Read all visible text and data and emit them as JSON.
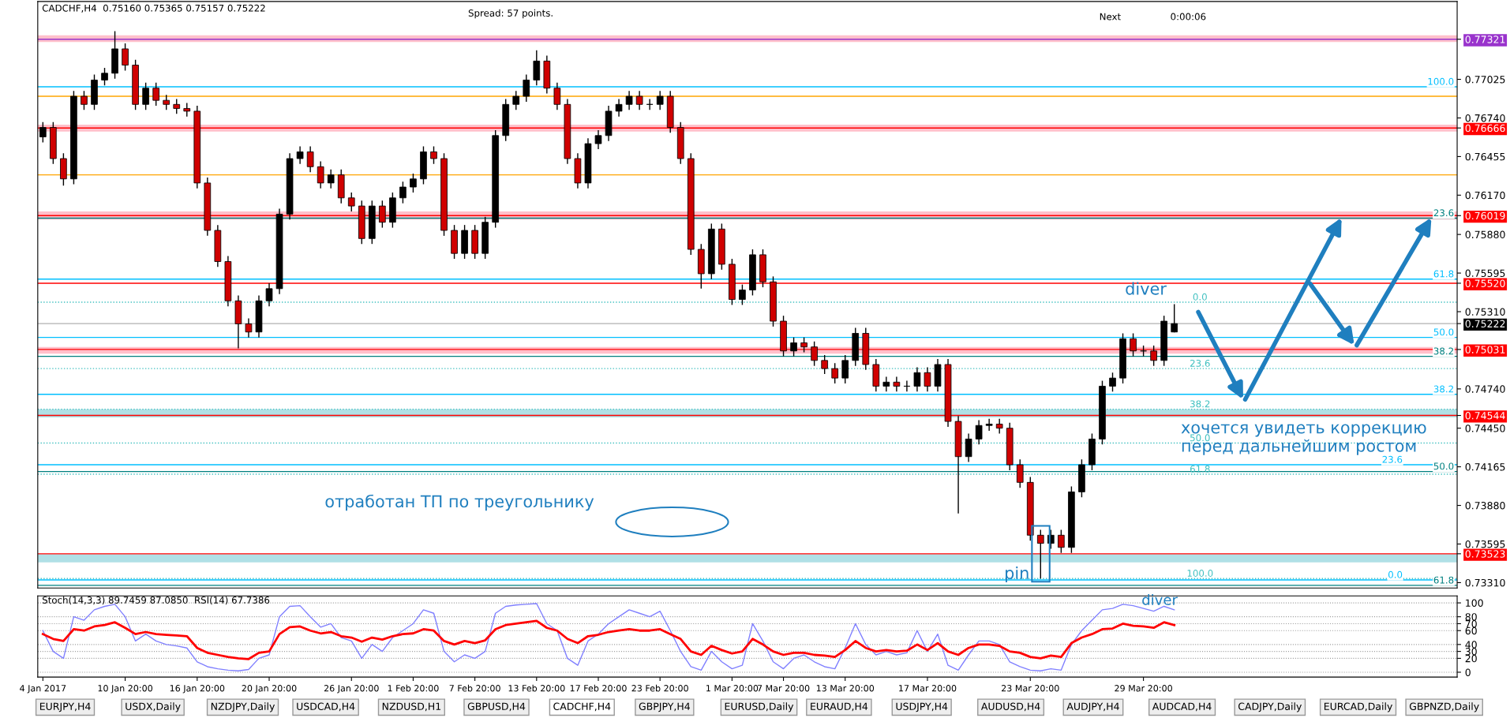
{
  "chart_data": [
    {
      "type": "candlestick",
      "title": "CADCHF,H4  0.75160 0.75365 0.75157 0.75222",
      "tick_labels": "y",
      "categories": [
        null,
        null,
        null,
        null,
        null,
        null,
        null,
        null,
        null,
        null,
        null,
        null,
        null,
        null,
        null,
        null,
        null,
        null,
        null,
        null,
        null,
        null,
        null,
        null,
        null,
        null,
        null,
        null,
        null,
        null,
        null,
        null,
        null,
        null,
        null,
        null,
        null,
        null,
        null,
        null,
        null,
        null,
        null,
        null,
        null,
        null,
        null,
        null,
        null,
        null,
        null,
        null,
        null,
        null,
        null,
        null,
        null,
        null,
        null,
        null,
        null,
        null,
        null,
        null,
        null,
        null,
        null,
        null,
        null,
        null,
        null,
        null,
        null,
        null,
        null,
        null,
        null,
        null,
        null,
        null,
        null,
        null,
        null,
        null,
        null,
        null,
        null,
        null,
        null,
        null,
        null,
        null,
        null,
        null,
        null,
        null,
        null,
        null,
        null,
        null,
        null,
        null,
        null,
        null,
        null,
        null,
        null,
        null,
        null,
        null,
        null,
        null,
        null,
        null,
        null,
        null,
        null,
        null,
        null,
        null,
        null,
        null,
        null,
        null,
        null,
        null,
        null,
        null,
        null,
        null,
        null,
        null,
        null,
        null,
        null,
        null,
        null,
        null
      ],
      "ohlc": [
        [
          0.766,
          0.7671,
          0.7656,
          0.7667
        ],
        [
          0.7667,
          0.7671,
          0.764,
          0.7644
        ],
        [
          0.7644,
          0.7648,
          0.7624,
          0.7629
        ],
        [
          0.7629,
          0.7694,
          0.7625,
          0.769
        ],
        [
          0.769,
          0.7694,
          0.768,
          0.7684
        ],
        [
          0.7684,
          0.7706,
          0.768,
          0.7702
        ],
        [
          0.7702,
          0.7711,
          0.7698,
          0.7707
        ],
        [
          0.7707,
          0.7738,
          0.7703,
          0.7725
        ],
        [
          0.7725,
          0.7729,
          0.7709,
          0.7713
        ],
        [
          0.7713,
          0.7717,
          0.768,
          0.7684
        ],
        [
          0.7684,
          0.77,
          0.768,
          0.7696
        ],
        [
          0.7696,
          0.77,
          0.7683,
          0.7687
        ],
        [
          0.7687,
          0.7691,
          0.768,
          0.7684
        ],
        [
          0.7684,
          0.7688,
          0.7677,
          0.7681
        ],
        [
          0.7681,
          0.7685,
          0.7675,
          0.7679
        ],
        [
          0.7679,
          0.7683,
          0.7622,
          0.7626
        ],
        [
          0.7626,
          0.763,
          0.7587,
          0.7591
        ],
        [
          0.7591,
          0.7595,
          0.7564,
          0.7568
        ],
        [
          0.7568,
          0.7572,
          0.7535,
          0.7539
        ],
        [
          0.7539,
          0.7543,
          0.7504,
          0.7522
        ],
        [
          0.7522,
          0.7526,
          0.7512,
          0.7516
        ],
        [
          0.7516,
          0.7543,
          0.7512,
          0.7539
        ],
        [
          0.7539,
          0.7552,
          0.7535,
          0.7548
        ],
        [
          0.7548,
          0.7607,
          0.7544,
          0.7603
        ],
        [
          0.7603,
          0.7648,
          0.7599,
          0.7644
        ],
        [
          0.7644,
          0.7653,
          0.764,
          0.7649
        ],
        [
          0.7649,
          0.7653,
          0.7634,
          0.7638
        ],
        [
          0.7638,
          0.7642,
          0.7622,
          0.7626
        ],
        [
          0.7626,
          0.7636,
          0.7622,
          0.7632
        ],
        [
          0.7632,
          0.7636,
          0.7611,
          0.7615
        ],
        [
          0.7615,
          0.7619,
          0.7605,
          0.7609
        ],
        [
          0.7609,
          0.7613,
          0.7581,
          0.7585
        ],
        [
          0.7585,
          0.7613,
          0.7581,
          0.7609
        ],
        [
          0.7609,
          0.7613,
          0.7593,
          0.7597
        ],
        [
          0.7597,
          0.7619,
          0.7593,
          0.7615
        ],
        [
          0.7615,
          0.7627,
          0.7611,
          0.7623
        ],
        [
          0.7623,
          0.7633,
          0.7619,
          0.7629
        ],
        [
          0.7629,
          0.7653,
          0.7625,
          0.7649
        ],
        [
          0.7649,
          0.7653,
          0.764,
          0.7644
        ],
        [
          0.7644,
          0.7648,
          0.7587,
          0.7591
        ],
        [
          0.7591,
          0.7595,
          0.757,
          0.7574
        ],
        [
          0.7574,
          0.7595,
          0.757,
          0.7591
        ],
        [
          0.7591,
          0.7595,
          0.757,
          0.7574
        ],
        [
          0.7574,
          0.7601,
          0.757,
          0.7597
        ],
        [
          0.7597,
          0.7665,
          0.7593,
          0.7661
        ],
        [
          0.7661,
          0.7688,
          0.7657,
          0.7684
        ],
        [
          0.7684,
          0.7694,
          0.768,
          0.769
        ],
        [
          0.769,
          0.7706,
          0.7686,
          0.7702
        ],
        [
          0.7702,
          0.7724,
          0.7698,
          0.7716
        ],
        [
          0.7716,
          0.772,
          0.7692,
          0.7696
        ],
        [
          0.7696,
          0.77,
          0.768,
          0.7684
        ],
        [
          0.7684,
          0.7688,
          0.764,
          0.7644
        ],
        [
          0.7644,
          0.7648,
          0.7622,
          0.7626
        ],
        [
          0.7626,
          0.7659,
          0.7622,
          0.7655
        ],
        [
          0.7655,
          0.7665,
          0.7651,
          0.7661
        ],
        [
          0.7661,
          0.7683,
          0.7657,
          0.7679
        ],
        [
          0.7679,
          0.7688,
          0.7675,
          0.7684
        ],
        [
          0.7684,
          0.7694,
          0.768,
          0.769
        ],
        [
          0.769,
          0.7694,
          0.768,
          0.7684
        ],
        [
          0.7684,
          0.7688,
          0.768,
          0.7684
        ],
        [
          0.7684,
          0.7694,
          0.768,
          0.769
        ],
        [
          0.769,
          0.7694,
          0.7663,
          0.7667
        ],
        [
          0.7667,
          0.7671,
          0.764,
          0.7644
        ],
        [
          0.7644,
          0.7648,
          0.7573,
          0.7577
        ],
        [
          0.7577,
          0.7581,
          0.7548,
          0.7559
        ],
        [
          0.7559,
          0.7596,
          0.7555,
          0.7592
        ],
        [
          0.7592,
          0.7596,
          0.7562,
          0.7566
        ],
        [
          0.7566,
          0.757,
          0.7536,
          0.754
        ],
        [
          0.754,
          0.7551,
          0.7536,
          0.7547
        ],
        [
          0.7547,
          0.7577,
          0.7543,
          0.7573
        ],
        [
          0.7573,
          0.7577,
          0.7549,
          0.7553
        ],
        [
          0.7553,
          0.7557,
          0.752,
          0.7524
        ],
        [
          0.7524,
          0.7528,
          0.7498,
          0.7502
        ],
        [
          0.7502,
          0.7512,
          0.7498,
          0.7508
        ],
        [
          0.7508,
          0.7512,
          0.7501,
          0.7505
        ],
        [
          0.7505,
          0.7509,
          0.7491,
          0.7495
        ],
        [
          0.7495,
          0.7499,
          0.7485,
          0.7489
        ],
        [
          0.7489,
          0.7493,
          0.7478,
          0.7482
        ],
        [
          0.7482,
          0.7499,
          0.7478,
          0.7495
        ],
        [
          0.7495,
          0.7519,
          0.7491,
          0.7515
        ],
        [
          0.7515,
          0.7519,
          0.7488,
          0.7492
        ],
        [
          0.7492,
          0.7496,
          0.7472,
          0.7476
        ],
        [
          0.7476,
          0.7483,
          0.7472,
          0.7479
        ],
        [
          0.7479,
          0.7483,
          0.7472,
          0.7476
        ],
        [
          0.7476,
          0.748,
          0.7472,
          0.7476
        ],
        [
          0.7476,
          0.749,
          0.7472,
          0.7486
        ],
        [
          0.7486,
          0.749,
          0.7472,
          0.7476
        ],
        [
          0.7476,
          0.7496,
          0.7472,
          0.7492
        ],
        [
          0.7492,
          0.7496,
          0.7446,
          0.745
        ],
        [
          0.745,
          0.7454,
          0.7382,
          0.7424
        ],
        [
          0.7424,
          0.7441,
          0.742,
          0.7437
        ],
        [
          0.7437,
          0.7451,
          0.7433,
          0.7447
        ],
        [
          0.7447,
          0.7452,
          0.7443,
          0.7448
        ],
        [
          0.7448,
          0.7452,
          0.7441,
          0.7445
        ],
        [
          0.7445,
          0.7449,
          0.7414,
          0.7418
        ],
        [
          0.7418,
          0.7422,
          0.7401,
          0.7405
        ],
        [
          0.7405,
          0.7409,
          0.7362,
          0.7366
        ],
        [
          0.7366,
          0.737,
          0.7334,
          0.736
        ],
        [
          0.736,
          0.737,
          0.7356,
          0.7366
        ],
        [
          0.7366,
          0.737,
          0.7353,
          0.7357
        ],
        [
          0.7357,
          0.7402,
          0.7353,
          0.7398
        ],
        [
          0.7398,
          0.7422,
          0.7394,
          0.7418
        ],
        [
          0.7418,
          0.7441,
          0.7414,
          0.7437
        ],
        [
          0.7437,
          0.748,
          0.7433,
          0.7476
        ],
        [
          0.7476,
          0.7486,
          0.7472,
          0.7482
        ],
        [
          0.7482,
          0.7515,
          0.7478,
          0.7511
        ],
        [
          0.7511,
          0.7515,
          0.7498,
          0.7502
        ],
        [
          0.7502,
          0.7506,
          0.7498,
          0.7502
        ],
        [
          0.7502,
          0.7506,
          0.7491,
          0.7495
        ],
        [
          0.7495,
          0.7528,
          0.7491,
          0.7524
        ],
        [
          0.7516,
          0.75365,
          0.75157,
          0.75222
        ],
        null,
        null,
        null,
        null,
        null,
        null,
        null,
        null,
        null,
        null,
        null,
        null,
        null,
        null,
        null,
        null,
        null,
        null,
        null,
        null,
        null,
        null,
        null,
        null,
        null,
        null,
        null
      ],
      "ylim": [
        0.7327,
        0.776
      ],
      "yticks": [
        {
          "value": 0.77321,
          "label": "0.77321"
        },
        {
          "value": 0.77025,
          "label": "0.77025"
        },
        {
          "value": 0.7674,
          "label": "0.76740"
        },
        {
          "value": 0.76666,
          "label": "0.76666"
        },
        {
          "value": 0.76455,
          "label": "0.76455"
        },
        {
          "value": 0.7617,
          "label": "0.76170"
        },
        {
          "value": 0.76019,
          "label": "0.76019"
        },
        {
          "value": 0.7588,
          "label": "0.75880"
        },
        {
          "value": 0.75595,
          "label": "0.75595"
        },
        {
          "value": 0.7552,
          "label": "0.75520"
        },
        {
          "value": 0.7531,
          "label": "0.75310"
        },
        {
          "value": 0.75222,
          "label": "0.75222"
        },
        {
          "value": 0.75031,
          "label": "0.75031"
        },
        {
          "value": 0.7474,
          "label": "0.74740"
        },
        {
          "value": 0.74544,
          "label": "0.74544"
        },
        {
          "value": 0.7445,
          "label": "0.74450"
        },
        {
          "value": 0.74165,
          "label": "0.74165"
        },
        {
          "value": 0.7388,
          "label": "0.73880"
        },
        {
          "value": 0.73595,
          "label": "0.73595"
        },
        {
          "value": 0.73523,
          "label": "0.73523"
        },
        {
          "value": 0.7331,
          "label": "0.73310"
        }
      ],
      "bands": [
        {
          "axis": "y",
          "from": 0.773,
          "to": 0.7735,
          "color": "#ffc0cb"
        },
        {
          "axis": "y",
          "from": 0.7664,
          "to": 0.7669,
          "color": "#ffc0cb"
        },
        {
          "axis": "y",
          "from": 0.7599,
          "to": 0.7605,
          "color": "#ffc0cb"
        },
        {
          "axis": "y",
          "from": 0.75,
          "to": 0.7505,
          "color": "#ffc0cb"
        },
        {
          "axis": "y",
          "from": 0.7453,
          "to": 0.7459,
          "color": "#b0e0e6"
        },
        {
          "axis": "y",
          "from": 0.7346,
          "to": 0.7352,
          "color": "#b0e0e6"
        }
      ],
      "ref_lines": [
        {
          "axis": "y",
          "value": 0.77321,
          "color": "#9933cc",
          "line_style": "solid"
        },
        {
          "axis": "y",
          "value": 0.76666,
          "color": "#ff0000",
          "line_style": "solid"
        },
        {
          "axis": "y",
          "value": 0.76019,
          "color": "#ff0000",
          "line_style": "solid"
        },
        {
          "axis": "y",
          "value": 0.7552,
          "color": "#ff0000",
          "line_style": "solid"
        },
        {
          "axis": "y",
          "value": 0.75222,
          "color": "#b0b0b0",
          "line_style": "solid"
        },
        {
          "axis": "y",
          "value": 0.75031,
          "color": "#ff0000",
          "line_style": "solid"
        },
        {
          "axis": "y",
          "value": 0.74544,
          "color": "#ff0000",
          "line_style": "solid"
        },
        {
          "axis": "y",
          "value": 0.73523,
          "color": "#ff0000",
          "line_style": "solid"
        },
        {
          "axis": "y",
          "value": 0.769,
          "color": "#ffa500",
          "line_style": "solid"
        },
        {
          "axis": "y",
          "value": 0.7632,
          "color": "#ffa500",
          "line_style": "solid"
        },
        {
          "axis": "y",
          "value": 0.76,
          "color": "#008080",
          "line_style": "solid"
        },
        {
          "axis": "y",
          "value": 0.7498,
          "color": "#008080",
          "line_style": "solid"
        },
        {
          "axis": "y",
          "value": 0.7413,
          "color": "#008080",
          "line_style": "solid"
        },
        {
          "axis": "y",
          "value": 0.7329,
          "color": "#008080",
          "line_style": "solid"
        },
        {
          "axis": "y",
          "value": 0.7697,
          "color": "#00bfff",
          "line_style": "solid"
        },
        {
          "axis": "y",
          "value": 0.7555,
          "color": "#00bfff",
          "line_style": "solid"
        },
        {
          "axis": "y",
          "value": 0.7512,
          "color": "#00bfff",
          "line_style": "solid"
        },
        {
          "axis": "y",
          "value": 0.747,
          "color": "#00bfff",
          "line_style": "solid"
        },
        {
          "axis": "y",
          "value": 0.7418,
          "color": "#00bfff",
          "line_style": "solid"
        },
        {
          "axis": "y",
          "value": 0.7333,
          "color": "#00bfff",
          "line_style": "solid"
        },
        {
          "axis": "y",
          "value": 0.7538,
          "color": "#40c0c0",
          "line_style": "dotted"
        },
        {
          "axis": "y",
          "value": 0.7489,
          "color": "#40c0c0",
          "line_style": "dotted"
        },
        {
          "axis": "y",
          "value": 0.7459,
          "color": "#40c0c0",
          "line_style": "dotted"
        },
        {
          "axis": "y",
          "value": 0.7434,
          "color": "#40c0c0",
          "line_style": "dotted"
        },
        {
          "axis": "y",
          "value": 0.7411,
          "color": "#40c0c0",
          "line_style": "dotted"
        },
        {
          "axis": "y",
          "value": 0.7334,
          "color": "#40c0c0",
          "line_style": "dotted"
        }
      ],
      "annotations": [
        "Spread: 57 points.",
        "Next",
        "0:00:06",
        "отработан ТП по треугольнику",
        "хочется увидеть коррекцию\nперед дальнейшим ростом",
        "diver",
        "pin",
        {
          "text": "23.6",
          "y": 0.76
        },
        {
          "text": "38.2",
          "y": 0.7498
        },
        {
          "text": "50.0",
          "y": 0.7413
        },
        {
          "text": "61.8",
          "y": 0.7329
        },
        {
          "text": "100.0",
          "y": 0.7697
        },
        {
          "text": "61.8",
          "y": 0.7555
        },
        {
          "text": "50.0",
          "y": 0.7512
        },
        {
          "text": "38.2",
          "y": 0.747
        },
        {
          "text": "23.6",
          "y": 0.7418
        },
        {
          "text": "0.0",
          "y": 0.7333
        },
        {
          "text": "0.0",
          "y": 0.7538
        },
        {
          "text": "23.6",
          "y": 0.7489
        },
        {
          "text": "38.2",
          "y": 0.7459
        },
        {
          "text": "50.0",
          "y": 0.7434
        },
        {
          "text": "61.8",
          "y": 0.7411
        },
        {
          "text": "100.0",
          "y": 0.7334
        }
      ]
    },
    {
      "type": "line",
      "title": "Stoch(14,3,3) 89.7459 87.0850  RSI(14) 67.7386",
      "grid": "y",
      "categories": [
        "4 Jan 2017",
        null,
        null,
        null,
        null,
        null,
        null,
        null,
        "10 Jan 20:00",
        null,
        null,
        null,
        null,
        null,
        null,
        "16 Jan 20:00",
        null,
        null,
        null,
        null,
        null,
        null,
        "20 Jan 20:00",
        null,
        null,
        null,
        null,
        null,
        null,
        null,
        "26 Jan 20:00",
        null,
        null,
        null,
        null,
        null,
        "1 Feb 20:00",
        null,
        null,
        null,
        null,
        null,
        "7 Feb 20:00",
        null,
        null,
        null,
        null,
        null,
        "13 Feb 20:00",
        null,
        null,
        null,
        null,
        null,
        "17 Feb 20:00",
        null,
        null,
        null,
        null,
        null,
        "23 Feb 20:00",
        null,
        null,
        null,
        null,
        null,
        null,
        "1 Mar 20:00",
        null,
        null,
        null,
        null,
        "7 Mar 20:00",
        null,
        null,
        null,
        null,
        null,
        "13 Mar 20:00",
        null,
        null,
        null,
        null,
        null,
        null,
        null,
        "17 Mar 20:00",
        null,
        null,
        null,
        null,
        null,
        null,
        null,
        null,
        null,
        "23 Mar 20:00",
        null,
        null,
        null,
        null,
        null,
        null,
        null,
        null,
        null,
        null,
        "29 Mar 20:00",
        null,
        null,
        null,
        null,
        null,
        null,
        null,
        null,
        null,
        null,
        null,
        null,
        null,
        null,
        null,
        null,
        null,
        null,
        null,
        null,
        null,
        null,
        null,
        null,
        null,
        null,
        null,
        null,
        null,
        null
      ],
      "series": [
        {
          "color": "#8080ff",
          "values": [
            60,
            30,
            20,
            80,
            75,
            90,
            95,
            98,
            80,
            45,
            55,
            45,
            40,
            38,
            35,
            15,
            8,
            5,
            3,
            2,
            4,
            20,
            25,
            80,
            95,
            96,
            80,
            65,
            70,
            50,
            45,
            20,
            40,
            30,
            50,
            60,
            70,
            90,
            85,
            30,
            15,
            25,
            20,
            30,
            85,
            95,
            97,
            98,
            99,
            70,
            60,
            20,
            10,
            45,
            55,
            70,
            80,
            90,
            85,
            80,
            88,
            60,
            30,
            8,
            3,
            30,
            15,
            5,
            10,
            70,
            45,
            15,
            5,
            20,
            25,
            15,
            8,
            5,
            35,
            70,
            40,
            25,
            30,
            25,
            28,
            60,
            30,
            55,
            10,
            3,
            25,
            45,
            45,
            40,
            15,
            8,
            3,
            2,
            5,
            3,
            40,
            60,
            75,
            90,
            92,
            98,
            96,
            92,
            88,
            95,
            90,
            null,
            null,
            null,
            null,
            null,
            null,
            null,
            null,
            null,
            null,
            null,
            null,
            null,
            null,
            null,
            null,
            null,
            null,
            null,
            null,
            null,
            null,
            null,
            null,
            null,
            null,
            null
          ]
        },
        {
          "color": "#ff0000",
          "values": [
            55,
            48,
            45,
            62,
            60,
            66,
            68,
            72,
            64,
            55,
            58,
            55,
            54,
            53,
            52,
            35,
            28,
            25,
            22,
            20,
            19,
            28,
            30,
            55,
            65,
            66,
            60,
            56,
            58,
            52,
            50,
            44,
            50,
            47,
            52,
            55,
            56,
            62,
            60,
            45,
            40,
            45,
            42,
            46,
            62,
            68,
            70,
            72,
            74,
            64,
            60,
            48,
            42,
            52,
            54,
            58,
            60,
            62,
            60,
            60,
            62,
            55,
            48,
            30,
            25,
            38,
            32,
            27,
            30,
            48,
            40,
            30,
            25,
            28,
            28,
            25,
            24,
            22,
            32,
            45,
            35,
            30,
            32,
            30,
            31,
            40,
            32,
            42,
            30,
            25,
            35,
            40,
            40,
            38,
            30,
            28,
            22,
            20,
            24,
            22,
            42,
            50,
            55,
            62,
            63,
            70,
            67,
            66,
            64,
            72,
            68,
            null,
            null,
            null,
            null,
            null,
            null,
            null,
            null,
            null,
            null,
            null,
            null,
            null,
            null,
            null,
            null,
            null,
            null,
            null,
            null,
            null,
            null,
            null,
            null,
            null,
            null,
            null
          ]
        }
      ],
      "ylim": [
        -7,
        110
      ],
      "yticks": [
        0,
        20,
        30,
        40,
        60,
        70,
        80,
        100
      ],
      "annotations": [
        "diver",
        "EURJPY,H4",
        "USDX,Daily",
        "NZDJPY,Daily",
        "USDCAD,H4",
        "NZDUSD,H1",
        "GBPUSD,H4",
        "CADCHF,H4",
        "GBPJPY,H4",
        "EURUSD,Daily",
        "EURAUD,H4",
        "USDJPY,H4",
        "AUDUSD,H4",
        "AUDJPY,H4",
        "AUDCAD,H4",
        "CADJPY,Daily",
        "EURCAD,Daily",
        "GBPNZD,Daily"
      ]
    }
  ]
}
